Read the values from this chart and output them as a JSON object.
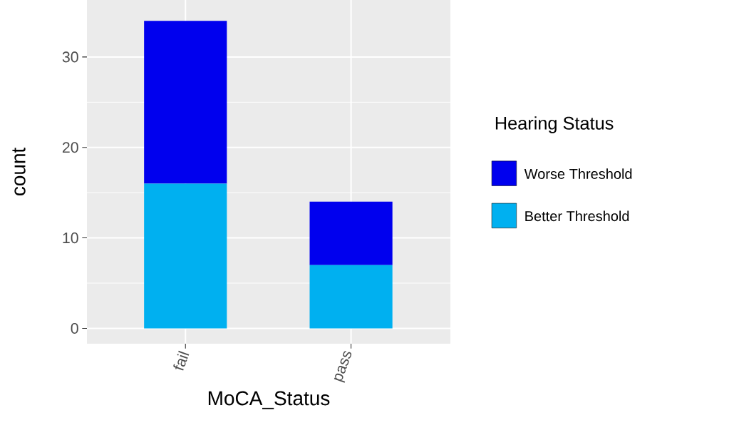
{
  "chart_data": {
    "type": "bar",
    "stacked": true,
    "xlabel": "MoCA_Status",
    "ylabel": "count",
    "legend_title": "Hearing Status",
    "legend": "right",
    "grid": true,
    "categories": [
      "fail",
      "pass"
    ],
    "series": [
      {
        "name": "Better Threshold",
        "color": "#00B0F0",
        "values": [
          16,
          7
        ]
      },
      {
        "name": "Worse Threshold",
        "color": "#0000EE",
        "values": [
          18,
          7
        ]
      }
    ],
    "ylim": [
      -1.7,
      36.3
    ],
    "yticks": [
      0,
      10,
      20,
      30
    ]
  }
}
